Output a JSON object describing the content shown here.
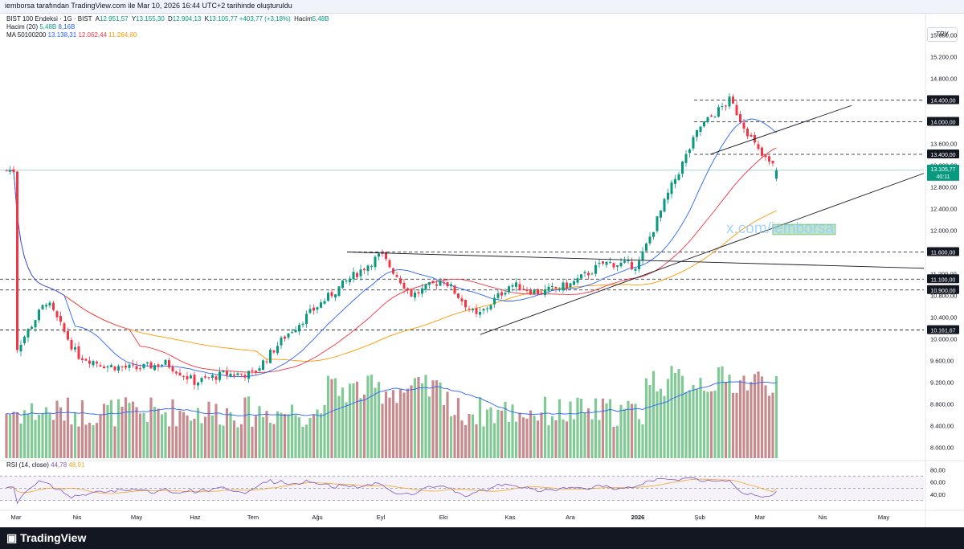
{
  "header": {
    "attribution": "iemborsa tarafından TradingView.com ile Mar 10, 2026 16:44 UTC+2 tarihinde oluşturuldu"
  },
  "legend": {
    "symbol": "BIST 100 Endeksi · 1G · BIST",
    "o_label": "A",
    "o_value": "12.951,57",
    "h_label": "Y",
    "h_value": "13.155,30",
    "l_label": "D",
    "l_value": "12.904,13",
    "c_label": "K",
    "c_value": "13.105,77",
    "change": "+403,77 (+3,18%)",
    "vol_label": "Hacim",
    "vol_value": "5,48B",
    "volume_ind_label": "Hacim (20)",
    "volume_ind_v1": "5,48B",
    "volume_ind_v2": "8,16B",
    "ma_label": "MA 50100200",
    "ma_v1": "13.138,31",
    "ma_v2": "12.062,44",
    "ma_v3": "11.264,60",
    "rsi_label": "RSI (14, close)",
    "rsi_v1": "44,78",
    "rsi_v2": "48,91"
  },
  "currency": "TRY",
  "watermark": "x.com/iemborsa",
  "price_axis": [
    "15.600,00",
    "15.200,00",
    "14.800,00",
    "14.400,00",
    "14.000,00",
    "13.600,00",
    "13.200,00",
    "12.800,00",
    "12.400,00",
    "12.000,00",
    "11.600,00",
    "11.200,00",
    "10.800,00",
    "10.400,00",
    "10.000,00",
    "9.600,00",
    "9.200,00",
    "8.800,00",
    "8.400,00",
    "8.000,00"
  ],
  "rsi_axis": [
    "80,00",
    "60,00",
    "40,00"
  ],
  "level_labels": [
    "14.400,00",
    "14.000,00",
    "13.400,00",
    "11.600,00",
    "11.100,00",
    "10.900,00",
    "10.161,67"
  ],
  "last_price_badge": {
    "price": "13.105,77",
    "countdown": "40:11"
  },
  "time_axis": [
    "Mar",
    "Nis",
    "May",
    "Haz",
    "Tem",
    "Ağu",
    "Eyl",
    "Eki",
    "Kas",
    "Ara",
    "2026",
    "Şub",
    "Mar",
    "Nis",
    "May"
  ],
  "footer": {
    "brand": "TradingView"
  },
  "colors": {
    "up": "#089981",
    "down": "#f23645",
    "vol_up": "#81c995",
    "vol_down": "#c78b8f",
    "ma50": "#2962ff",
    "ma100": "#f23645",
    "ma200": "#ff9800",
    "rsi": "#7e57c2",
    "rsi_ma": "#f5a623"
  },
  "chart_data": {
    "type": "candlestick",
    "title": "BIST 100 Endeksi · 1G · BIST",
    "ylim": [
      7800,
      15800
    ],
    "horizontal_levels": [
      14400,
      14000,
      13400,
      11600,
      11100,
      10900,
      10161.67
    ],
    "anchors": [
      {
        "x": "Mar",
        "close": 9800
      },
      {
        "x": "mid-Mar",
        "close": 10700
      },
      {
        "x": "Nis",
        "close": 9700
      },
      {
        "x": "mid-Nis",
        "close": 9500
      },
      {
        "x": "May",
        "close": 9450
      },
      {
        "x": "mid-May",
        "close": 9550
      },
      {
        "x": "Haz",
        "close": 9200
      },
      {
        "x": "mid-Haz",
        "close": 9350
      },
      {
        "x": "Tem",
        "close": 9350
      },
      {
        "x": "mid-Tem",
        "close": 10050
      },
      {
        "x": "Ağu",
        "close": 10600
      },
      {
        "x": "mid-Ağu",
        "close": 11100
      },
      {
        "x": "Eyl",
        "close": 11550
      },
      {
        "x": "mid-Eyl",
        "close": 10800
      },
      {
        "x": "Eki",
        "close": 11100
      },
      {
        "x": "mid-Eki",
        "close": 10400
      },
      {
        "x": "Kas",
        "close": 11000
      },
      {
        "x": "mid-Kas",
        "close": 10850
      },
      {
        "x": "Ara",
        "close": 11000
      },
      {
        "x": "mid-Ara",
        "close": 11400
      },
      {
        "x": "2026",
        "close": 11350
      },
      {
        "x": "mid-Oca",
        "close": 12700
      },
      {
        "x": "Şub",
        "close": 13900
      },
      {
        "x": "mid-Şub",
        "close": 14400
      },
      {
        "x": "Mar 2026",
        "close": 13400
      },
      {
        "x": "Mar 10 2026",
        "close": 13105.77
      }
    ],
    "last": {
      "open": 12951.57,
      "high": 13155.3,
      "low": 12904.13,
      "close": 13105.77
    },
    "rsi_range": [
      20,
      90
    ],
    "rsi_last": 44.78,
    "rsi_ma_last": 48.91
  }
}
